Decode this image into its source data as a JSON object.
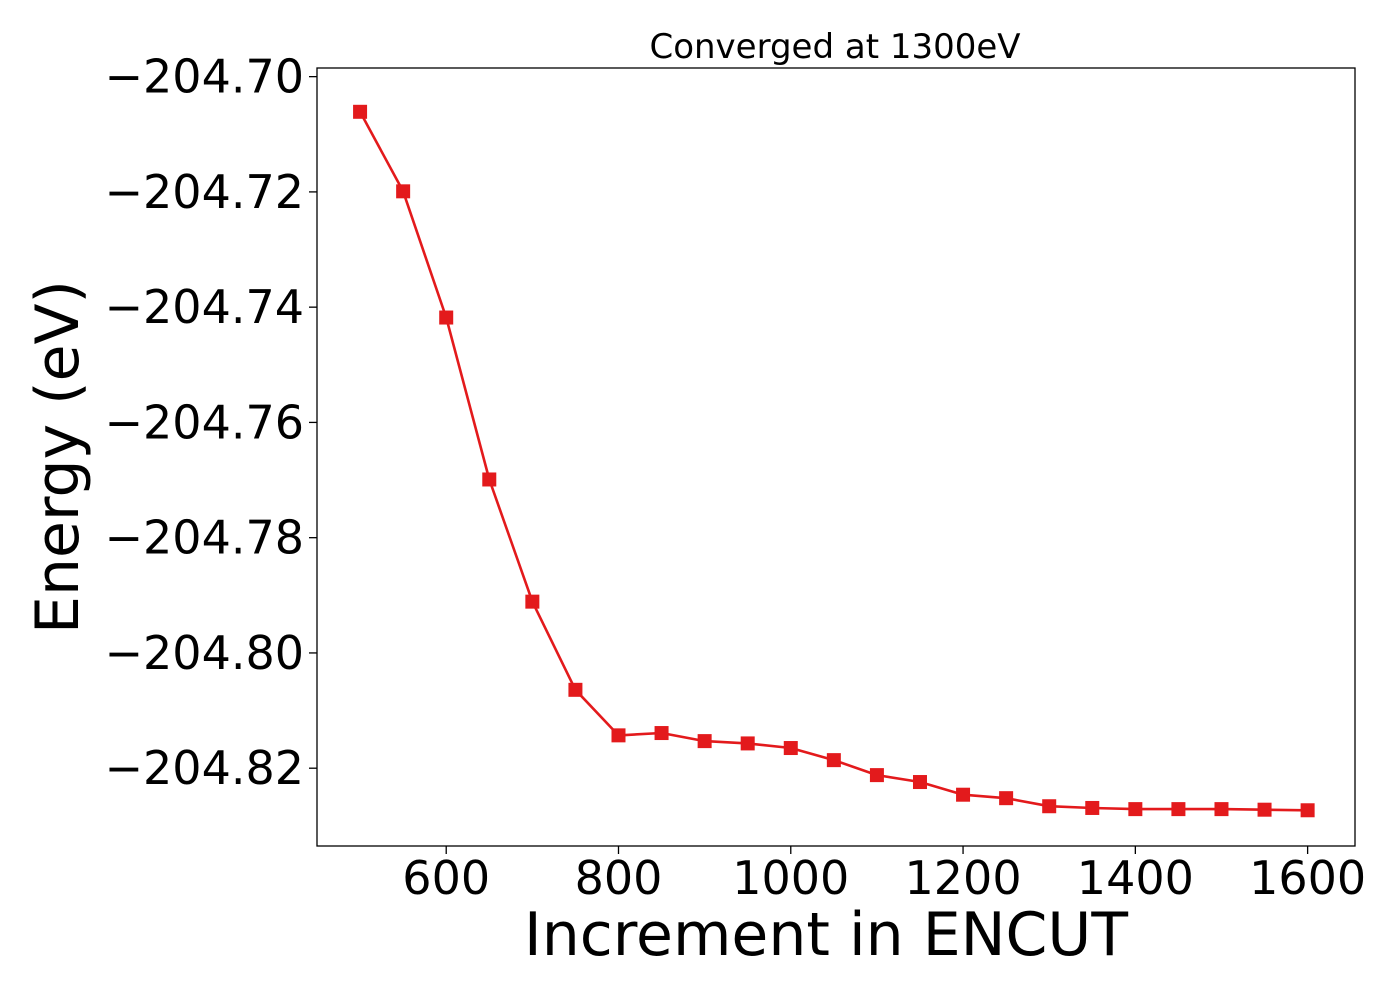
{
  "chart_data": {
    "type": "line",
    "title": "Converged at 1300eV",
    "xlabel": "Increment in ENCUT",
    "ylabel": "Energy (eV)",
    "xlim": [
      450,
      1655
    ],
    "ylim": [
      -204.8335,
      -204.6985
    ],
    "x_ticks": [
      600,
      800,
      1000,
      1200,
      1400,
      1600
    ],
    "x_tick_labels": [
      "600",
      "800",
      "1000",
      "1200",
      "1400",
      "1600"
    ],
    "y_ticks": [
      -204.7,
      -204.72,
      -204.74,
      -204.76,
      -204.78,
      -204.8,
      -204.82
    ],
    "y_tick_labels": [
      "−204.70",
      "−204.72",
      "−204.74",
      "−204.76",
      "−204.78",
      "−204.80",
      "−204.82"
    ],
    "grid": false,
    "legend": "none",
    "series": [
      {
        "color": "#e31a1c",
        "marker": "square",
        "x": [
          500,
          550,
          600,
          650,
          700,
          750,
          800,
          850,
          900,
          950,
          1000,
          1050,
          1100,
          1150,
          1200,
          1250,
          1300,
          1350,
          1400,
          1450,
          1500,
          1550,
          1600
        ],
        "y": [
          -204.7061,
          -204.7199,
          -204.7418,
          -204.7699,
          -204.7911,
          -204.8064,
          -204.8143,
          -204.8139,
          -204.8153,
          -204.8157,
          -204.8165,
          -204.8186,
          -204.8212,
          -204.8224,
          -204.8246,
          -204.8252,
          -204.8266,
          -204.8269,
          -204.8271,
          -204.8271,
          -204.8271,
          -204.8272,
          -204.8273
        ]
      }
    ]
  }
}
